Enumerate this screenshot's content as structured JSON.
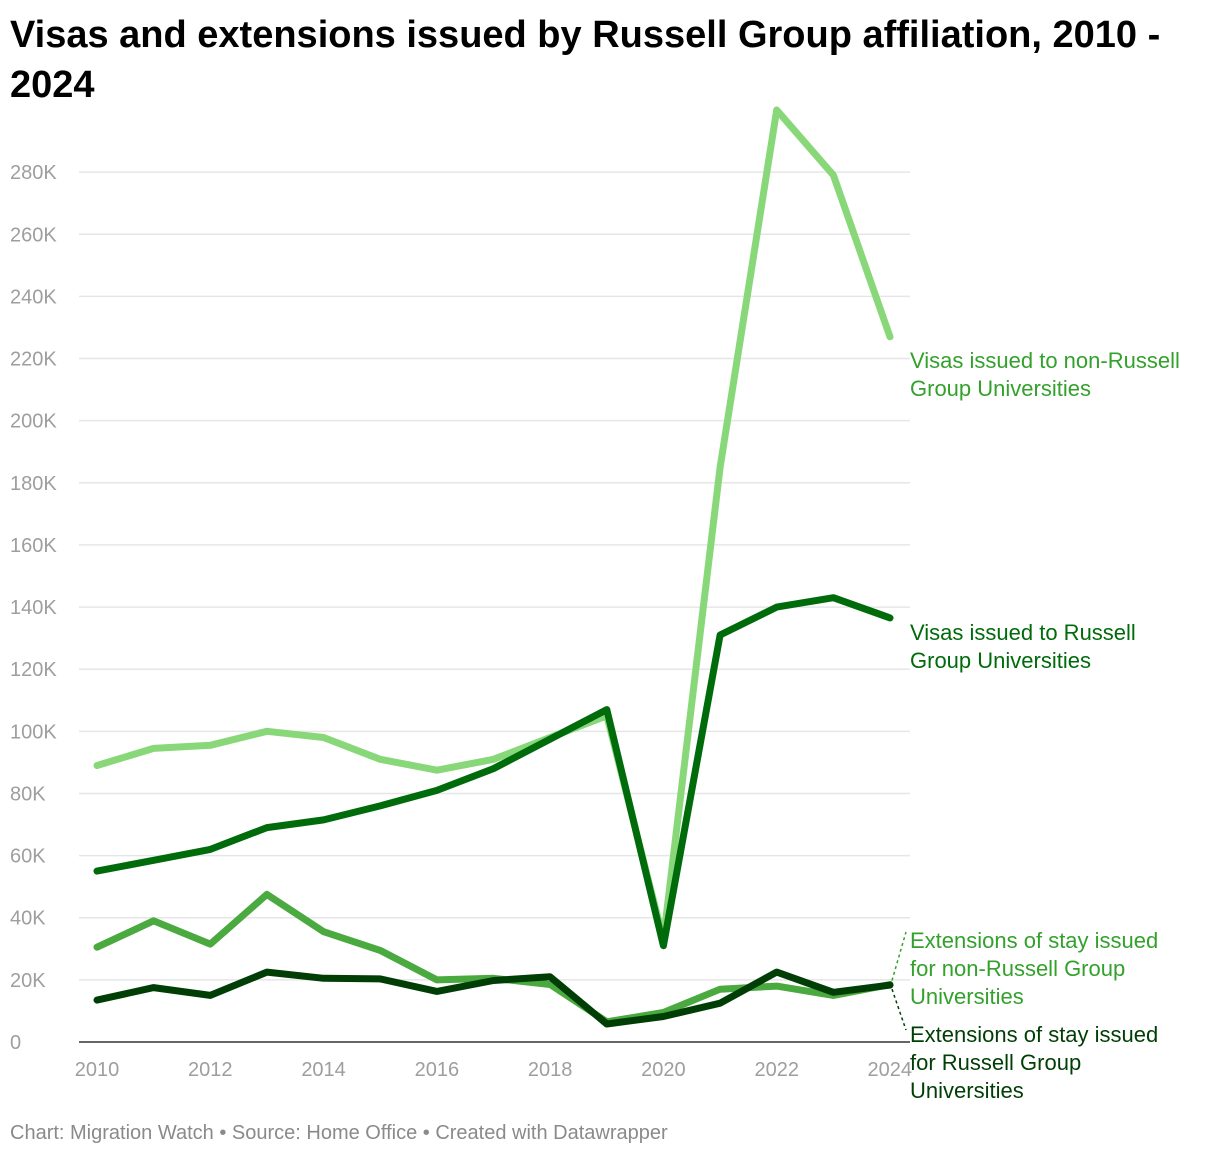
{
  "title": "Visas and extensions issued by Russell Group affiliation, 2010 - 2024",
  "footer": {
    "chart": "Chart: Migration Watch",
    "source": "Source: Home Office",
    "created": "Created with Datawrapper",
    "separator": "•"
  },
  "chart_data": {
    "type": "line",
    "title": "Visas and extensions issued by Russell Group affiliation, 2010 - 2024",
    "xlabel": "",
    "ylabel": "",
    "x": [
      2010,
      2011,
      2012,
      2013,
      2014,
      2015,
      2016,
      2017,
      2018,
      2019,
      2020,
      2021,
      2022,
      2023,
      2024
    ],
    "x_ticks": [
      "2010",
      "2012",
      "2014",
      "2016",
      "2018",
      "2020",
      "2022",
      "2024"
    ],
    "y_ticks": [
      "0",
      "20K",
      "40K",
      "60K",
      "80K",
      "100K",
      "120K",
      "140K",
      "160K",
      "180K",
      "200K",
      "220K",
      "240K",
      "260K",
      "280K"
    ],
    "ylim": [
      0,
      300000
    ],
    "grid": true,
    "series": [
      {
        "name": "Visas issued to non-Russell Group Universities",
        "label_lines": [
          "Visas issued to non-Russell",
          "Group Universities"
        ],
        "color": "#88d879",
        "label_color": "#33a12c",
        "values": [
          89000,
          94500,
          95500,
          100000,
          98000,
          91000,
          87500,
          91000,
          98000,
          105000,
          33000,
          185000,
          300000,
          279000,
          227000
        ]
      },
      {
        "name": "Visas issued to Russell Group Universities",
        "label_lines": [
          "Visas issued to Russell",
          "Group Universities"
        ],
        "color": "#006b0b",
        "label_color": "#006b0b",
        "values": [
          55000,
          58500,
          62000,
          69000,
          71500,
          76000,
          81000,
          88000,
          97500,
          107000,
          31000,
          131000,
          140000,
          143000,
          136500
        ]
      },
      {
        "name": "Extensions of stay issued for non-Russell Group Universities",
        "label_lines": [
          "Extensions of stay issued",
          "for non-Russell Group",
          "Universities"
        ],
        "color": "#4aaa3f",
        "label_color": "#33a12c",
        "values": [
          30500,
          39000,
          31500,
          47500,
          35500,
          29500,
          20000,
          20500,
          18500,
          6500,
          9500,
          17000,
          18000,
          15000,
          18500
        ]
      },
      {
        "name": "Extensions of stay issued for Russell Group Universities",
        "label_lines": [
          "Extensions of stay issued",
          "for Russell Group",
          "Universities"
        ],
        "color": "#013e05",
        "label_color": "#013e05",
        "values": [
          13500,
          17500,
          15000,
          22500,
          20500,
          20300,
          16300,
          19800,
          21000,
          5800,
          8200,
          12500,
          22500,
          16000,
          18300
        ]
      }
    ]
  }
}
